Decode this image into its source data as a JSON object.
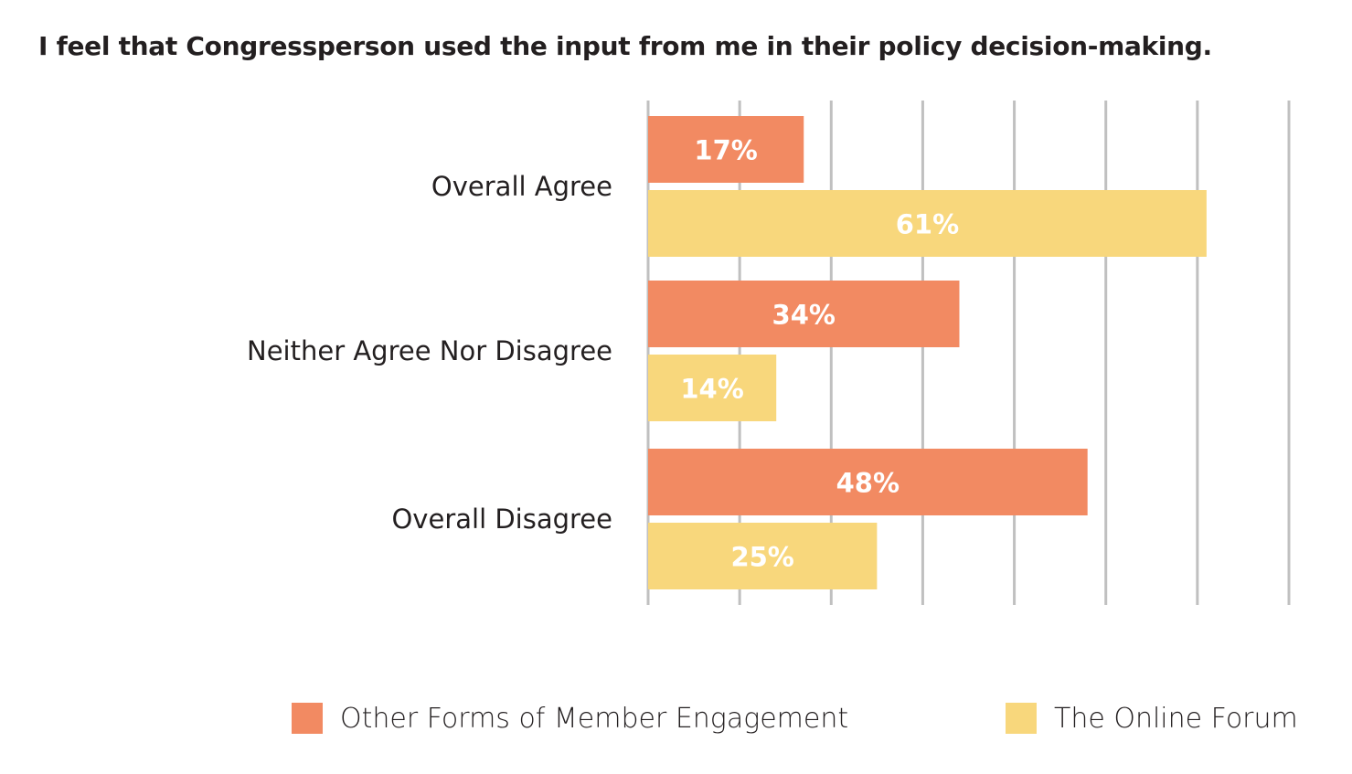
{
  "chart_data": {
    "type": "bar",
    "orientation": "horizontal",
    "title": "I feel that Congressperson used the input from me in their policy decision-making.",
    "categories": [
      "Overall Agree",
      "Neither Agree Nor Disagree",
      "Overall Disagree"
    ],
    "series": [
      {
        "name": "Other Forms of Member Engagement",
        "color": "#f28a62",
        "values": [
          17,
          34,
          48
        ],
        "labels": [
          "17%",
          "34%",
          "48%"
        ]
      },
      {
        "name": "The Online Forum",
        "color": "#f8d77c",
        "values": [
          61,
          14,
          25
        ],
        "labels": [
          "61%",
          "14%",
          "25%"
        ]
      }
    ],
    "xlim": [
      0,
      70
    ],
    "grid": true,
    "gridline_color": "#c0c0c0",
    "legend_position": "bottom"
  }
}
